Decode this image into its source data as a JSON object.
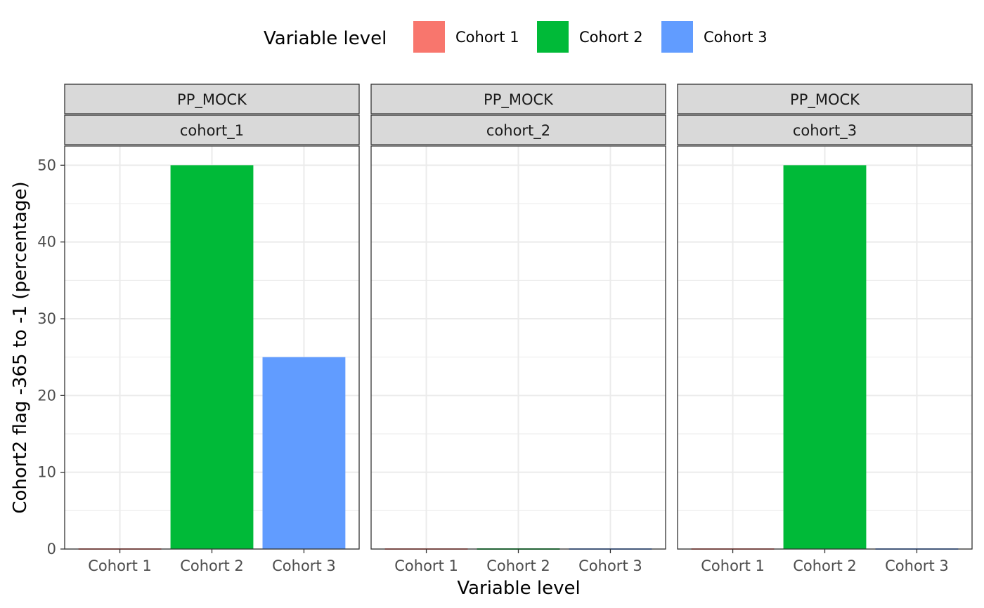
{
  "chart_data": {
    "type": "bar",
    "facet_rows": [
      "PP_MOCK"
    ],
    "xlabel": "Variable level",
    "ylabel": "Cohort2 flag -365 to -1 (percentage)",
    "ylim": [
      0,
      52.5
    ],
    "yticks": [
      0,
      10,
      20,
      30,
      40,
      50
    ],
    "grid": true,
    "legend": {
      "title": "Variable level",
      "placement": "top",
      "entries": [
        "Cohort 1",
        "Cohort 2",
        "Cohort 3"
      ]
    },
    "categories": [
      "Cohort 1",
      "Cohort 2",
      "Cohort 3"
    ],
    "colors": [
      "#F8766D",
      "#00BA38",
      "#619CFF"
    ],
    "panels": [
      {
        "strip_top": "PP_MOCK",
        "strip_bottom": "cohort_1",
        "values": [
          0,
          50,
          25
        ]
      },
      {
        "strip_top": "PP_MOCK",
        "strip_bottom": "cohort_2",
        "values": [
          0,
          0,
          0
        ]
      },
      {
        "strip_top": "PP_MOCK",
        "strip_bottom": "cohort_3",
        "values": [
          0,
          50,
          0
        ]
      }
    ]
  }
}
